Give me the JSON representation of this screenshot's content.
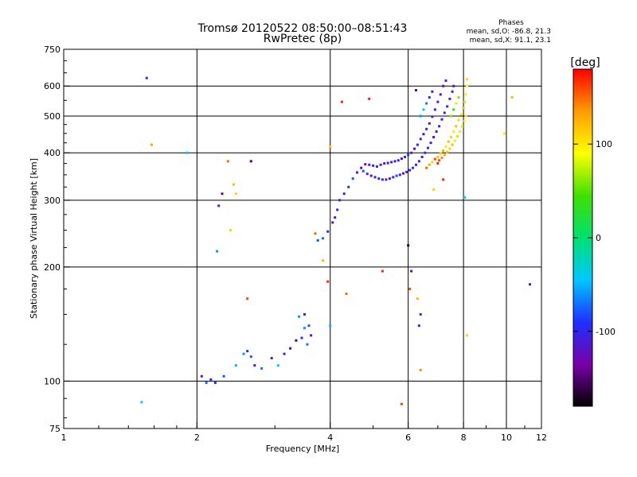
{
  "chart_data": {
    "type": "scatter",
    "title": "Tromsø 20120522 08:50:00–08:51:43",
    "subtitle": "RwPretec (8p)",
    "xlabel": "Frequency [MHz]",
    "ylabel": "Stationary phase Virtual Height [km]",
    "x_scale": "log",
    "y_scale": "log",
    "xlim": [
      1,
      12
    ],
    "ylim": [
      75,
      750
    ],
    "x_ticks": [
      1,
      2,
      4,
      6,
      8,
      10,
      12
    ],
    "y_ticks": [
      75,
      100,
      200,
      300,
      400,
      500,
      600,
      750
    ],
    "grid": true,
    "stats": {
      "title": "Phases",
      "line1": "mean, sd,O: -86.8, 21.3",
      "line2": "mean, sd,X:  91.1, 23.1"
    },
    "colorbar": {
      "label": "[deg]",
      "ticks": [
        100,
        0,
        -100
      ],
      "range": [
        -180,
        180
      ],
      "colors": [
        "#000000",
        "#7a00a8",
        "#1e30ff",
        "#00c8ff",
        "#00e070",
        "#40e000",
        "#ffff00",
        "#ff9c00",
        "#ff0000"
      ]
    },
    "points": [
      [
        1.54,
        630,
        -100
      ],
      [
        1.58,
        420,
        130
      ],
      [
        1.9,
        400,
        -40
      ],
      [
        2.35,
        380,
        150
      ],
      [
        2.28,
        312,
        -140
      ],
      [
        2.24,
        290,
        -100
      ],
      [
        2.42,
        330,
        120
      ],
      [
        2.45,
        312,
        110
      ],
      [
        2.38,
        250,
        110
      ],
      [
        2.22,
        220,
        -60
      ],
      [
        2.65,
        380,
        -150
      ],
      [
        2.6,
        165,
        160
      ],
      [
        1.5,
        88,
        -40
      ],
      [
        4.25,
        545,
        170
      ],
      [
        4.9,
        555,
        170
      ],
      [
        4.0,
        415,
        120
      ],
      [
        3.7,
        245,
        150
      ],
      [
        3.85,
        208,
        120
      ],
      [
        3.95,
        183,
        170
      ],
      [
        4.35,
        170,
        150
      ],
      [
        5.25,
        195,
        170
      ],
      [
        6.0,
        228,
        -160
      ],
      [
        6.1,
        195,
        -120
      ],
      [
        6.05,
        175,
        160
      ],
      [
        6.3,
        165,
        120
      ],
      [
        6.4,
        150,
        -110
      ],
      [
        6.35,
        140,
        -100
      ],
      [
        6.4,
        107,
        140
      ],
      [
        5.8,
        87,
        160
      ],
      [
        4.0,
        140,
        -50
      ],
      [
        8.05,
        305,
        -40
      ],
      [
        8.15,
        132,
        110
      ],
      [
        9.9,
        450,
        100
      ],
      [
        10.3,
        560,
        120
      ],
      [
        11.3,
        180,
        -90
      ],
      [
        6.25,
        585,
        -140
      ],
      [
        6.85,
        320,
        110
      ],
      [
        7.2,
        340,
        170
      ],
      [
        2.1,
        99,
        -70
      ],
      [
        2.15,
        101,
        -110
      ],
      [
        2.2,
        99,
        -90
      ],
      [
        2.05,
        103,
        -100
      ],
      [
        2.3,
        103,
        -80
      ],
      [
        2.45,
        110,
        -50
      ],
      [
        2.55,
        118,
        -60
      ],
      [
        2.6,
        120,
        -90
      ],
      [
        2.65,
        116,
        -80
      ],
      [
        2.7,
        110,
        -120
      ],
      [
        2.8,
        108,
        -70
      ],
      [
        2.95,
        115,
        -100
      ],
      [
        3.05,
        110,
        -40
      ],
      [
        3.15,
        118,
        -110
      ],
      [
        3.25,
        122,
        -140
      ],
      [
        3.35,
        128,
        -150
      ],
      [
        3.45,
        130,
        -90
      ],
      [
        3.5,
        138,
        -60
      ],
      [
        3.58,
        140,
        -80
      ],
      [
        3.62,
        132,
        -120
      ],
      [
        3.55,
        125,
        -70
      ],
      [
        3.4,
        148,
        -60
      ],
      [
        3.5,
        150,
        -100
      ],
      [
        3.75,
        235,
        -80
      ],
      [
        3.85,
        238,
        -70
      ],
      [
        3.95,
        248,
        -100
      ],
      [
        4.05,
        262,
        -110
      ],
      [
        4.1,
        270,
        -120
      ],
      [
        4.15,
        283,
        -90
      ],
      [
        4.2,
        300,
        -100
      ],
      [
        4.3,
        312,
        -110
      ],
      [
        4.4,
        325,
        -90
      ],
      [
        4.5,
        342,
        -80
      ],
      [
        4.6,
        355,
        -100
      ],
      [
        4.7,
        365,
        -120
      ],
      [
        4.8,
        373,
        -130
      ],
      [
        4.9,
        372,
        -110
      ],
      [
        5.0,
        370,
        -100
      ],
      [
        5.1,
        368,
        -90
      ],
      [
        5.2,
        372,
        -110
      ],
      [
        5.3,
        375,
        -120
      ],
      [
        5.4,
        376,
        -130
      ],
      [
        5.5,
        378,
        -110
      ],
      [
        5.6,
        380,
        -100
      ],
      [
        5.7,
        382,
        -110
      ],
      [
        5.8,
        386,
        -120
      ],
      [
        5.9,
        390,
        -100
      ],
      [
        6.0,
        395,
        -90
      ],
      [
        6.1,
        400,
        -110
      ],
      [
        6.2,
        410,
        -120
      ],
      [
        6.3,
        420,
        -100
      ],
      [
        6.4,
        435,
        -110
      ],
      [
        6.5,
        448,
        -120
      ],
      [
        6.6,
        462,
        -100
      ],
      [
        6.7,
        478,
        -110
      ],
      [
        6.8,
        498,
        -120
      ],
      [
        6.9,
        520,
        -100
      ],
      [
        7.0,
        545,
        -110
      ],
      [
        7.1,
        570,
        -120
      ],
      [
        7.2,
        600,
        -130
      ],
      [
        7.3,
        620,
        -100
      ],
      [
        4.75,
        358,
        -80
      ],
      [
        4.85,
        352,
        -100
      ],
      [
        4.95,
        348,
        -120
      ],
      [
        5.05,
        345,
        -110
      ],
      [
        5.15,
        342,
        -100
      ],
      [
        5.25,
        340,
        -90
      ],
      [
        5.35,
        340,
        -110
      ],
      [
        5.45,
        342,
        -120
      ],
      [
        5.55,
        345,
        -100
      ],
      [
        5.65,
        348,
        -80
      ],
      [
        5.75,
        350,
        -110
      ],
      [
        5.85,
        353,
        -120
      ],
      [
        5.95,
        356,
        -100
      ],
      [
        6.05,
        360,
        -110
      ],
      [
        6.15,
        365,
        -90
      ],
      [
        6.25,
        372,
        -100
      ],
      [
        6.35,
        380,
        -120
      ],
      [
        6.45,
        390,
        -110
      ],
      [
        6.55,
        400,
        -100
      ],
      [
        6.65,
        412,
        -90
      ],
      [
        6.75,
        425,
        -110
      ],
      [
        6.85,
        440,
        -120
      ],
      [
        6.95,
        455,
        -100
      ],
      [
        7.05,
        470,
        -110
      ],
      [
        7.15,
        490,
        -120
      ],
      [
        7.25,
        510,
        -100
      ],
      [
        7.35,
        530,
        -90
      ],
      [
        7.45,
        555,
        -110
      ],
      [
        7.55,
        580,
        -100
      ],
      [
        7.6,
        600,
        -120
      ],
      [
        6.6,
        365,
        150
      ],
      [
        6.7,
        372,
        130
      ],
      [
        6.8,
        378,
        110
      ],
      [
        6.9,
        385,
        160
      ],
      [
        7.0,
        390,
        120
      ],
      [
        7.1,
        398,
        110
      ],
      [
        7.2,
        405,
        130
      ],
      [
        7.3,
        415,
        100
      ],
      [
        7.4,
        428,
        120
      ],
      [
        7.5,
        440,
        110
      ],
      [
        7.6,
        455,
        100
      ],
      [
        7.7,
        470,
        120
      ],
      [
        7.8,
        488,
        110
      ],
      [
        7.9,
        505,
        100
      ],
      [
        8.0,
        525,
        120
      ],
      [
        8.05,
        545,
        110
      ],
      [
        8.1,
        570,
        100
      ],
      [
        8.15,
        600,
        90
      ],
      [
        8.15,
        625,
        110
      ],
      [
        7.0,
        375,
        170
      ],
      [
        7.05,
        382,
        160
      ],
      [
        7.15,
        388,
        140
      ],
      [
        7.25,
        395,
        130
      ],
      [
        7.35,
        402,
        120
      ],
      [
        7.45,
        410,
        110
      ],
      [
        7.55,
        420,
        120
      ],
      [
        7.65,
        430,
        100
      ],
      [
        7.75,
        442,
        110
      ],
      [
        7.85,
        455,
        100
      ],
      [
        7.95,
        470,
        110
      ],
      [
        8.05,
        485,
        90
      ],
      [
        8.1,
        500,
        100
      ],
      [
        7.5,
        500,
        60
      ],
      [
        7.6,
        520,
        40
      ],
      [
        7.7,
        540,
        80
      ],
      [
        7.8,
        560,
        60
      ],
      [
        6.4,
        500,
        -60
      ],
      [
        6.5,
        520,
        -40
      ],
      [
        6.6,
        540,
        -70
      ],
      [
        6.7,
        560,
        -90
      ],
      [
        6.8,
        580,
        -110
      ]
    ]
  }
}
